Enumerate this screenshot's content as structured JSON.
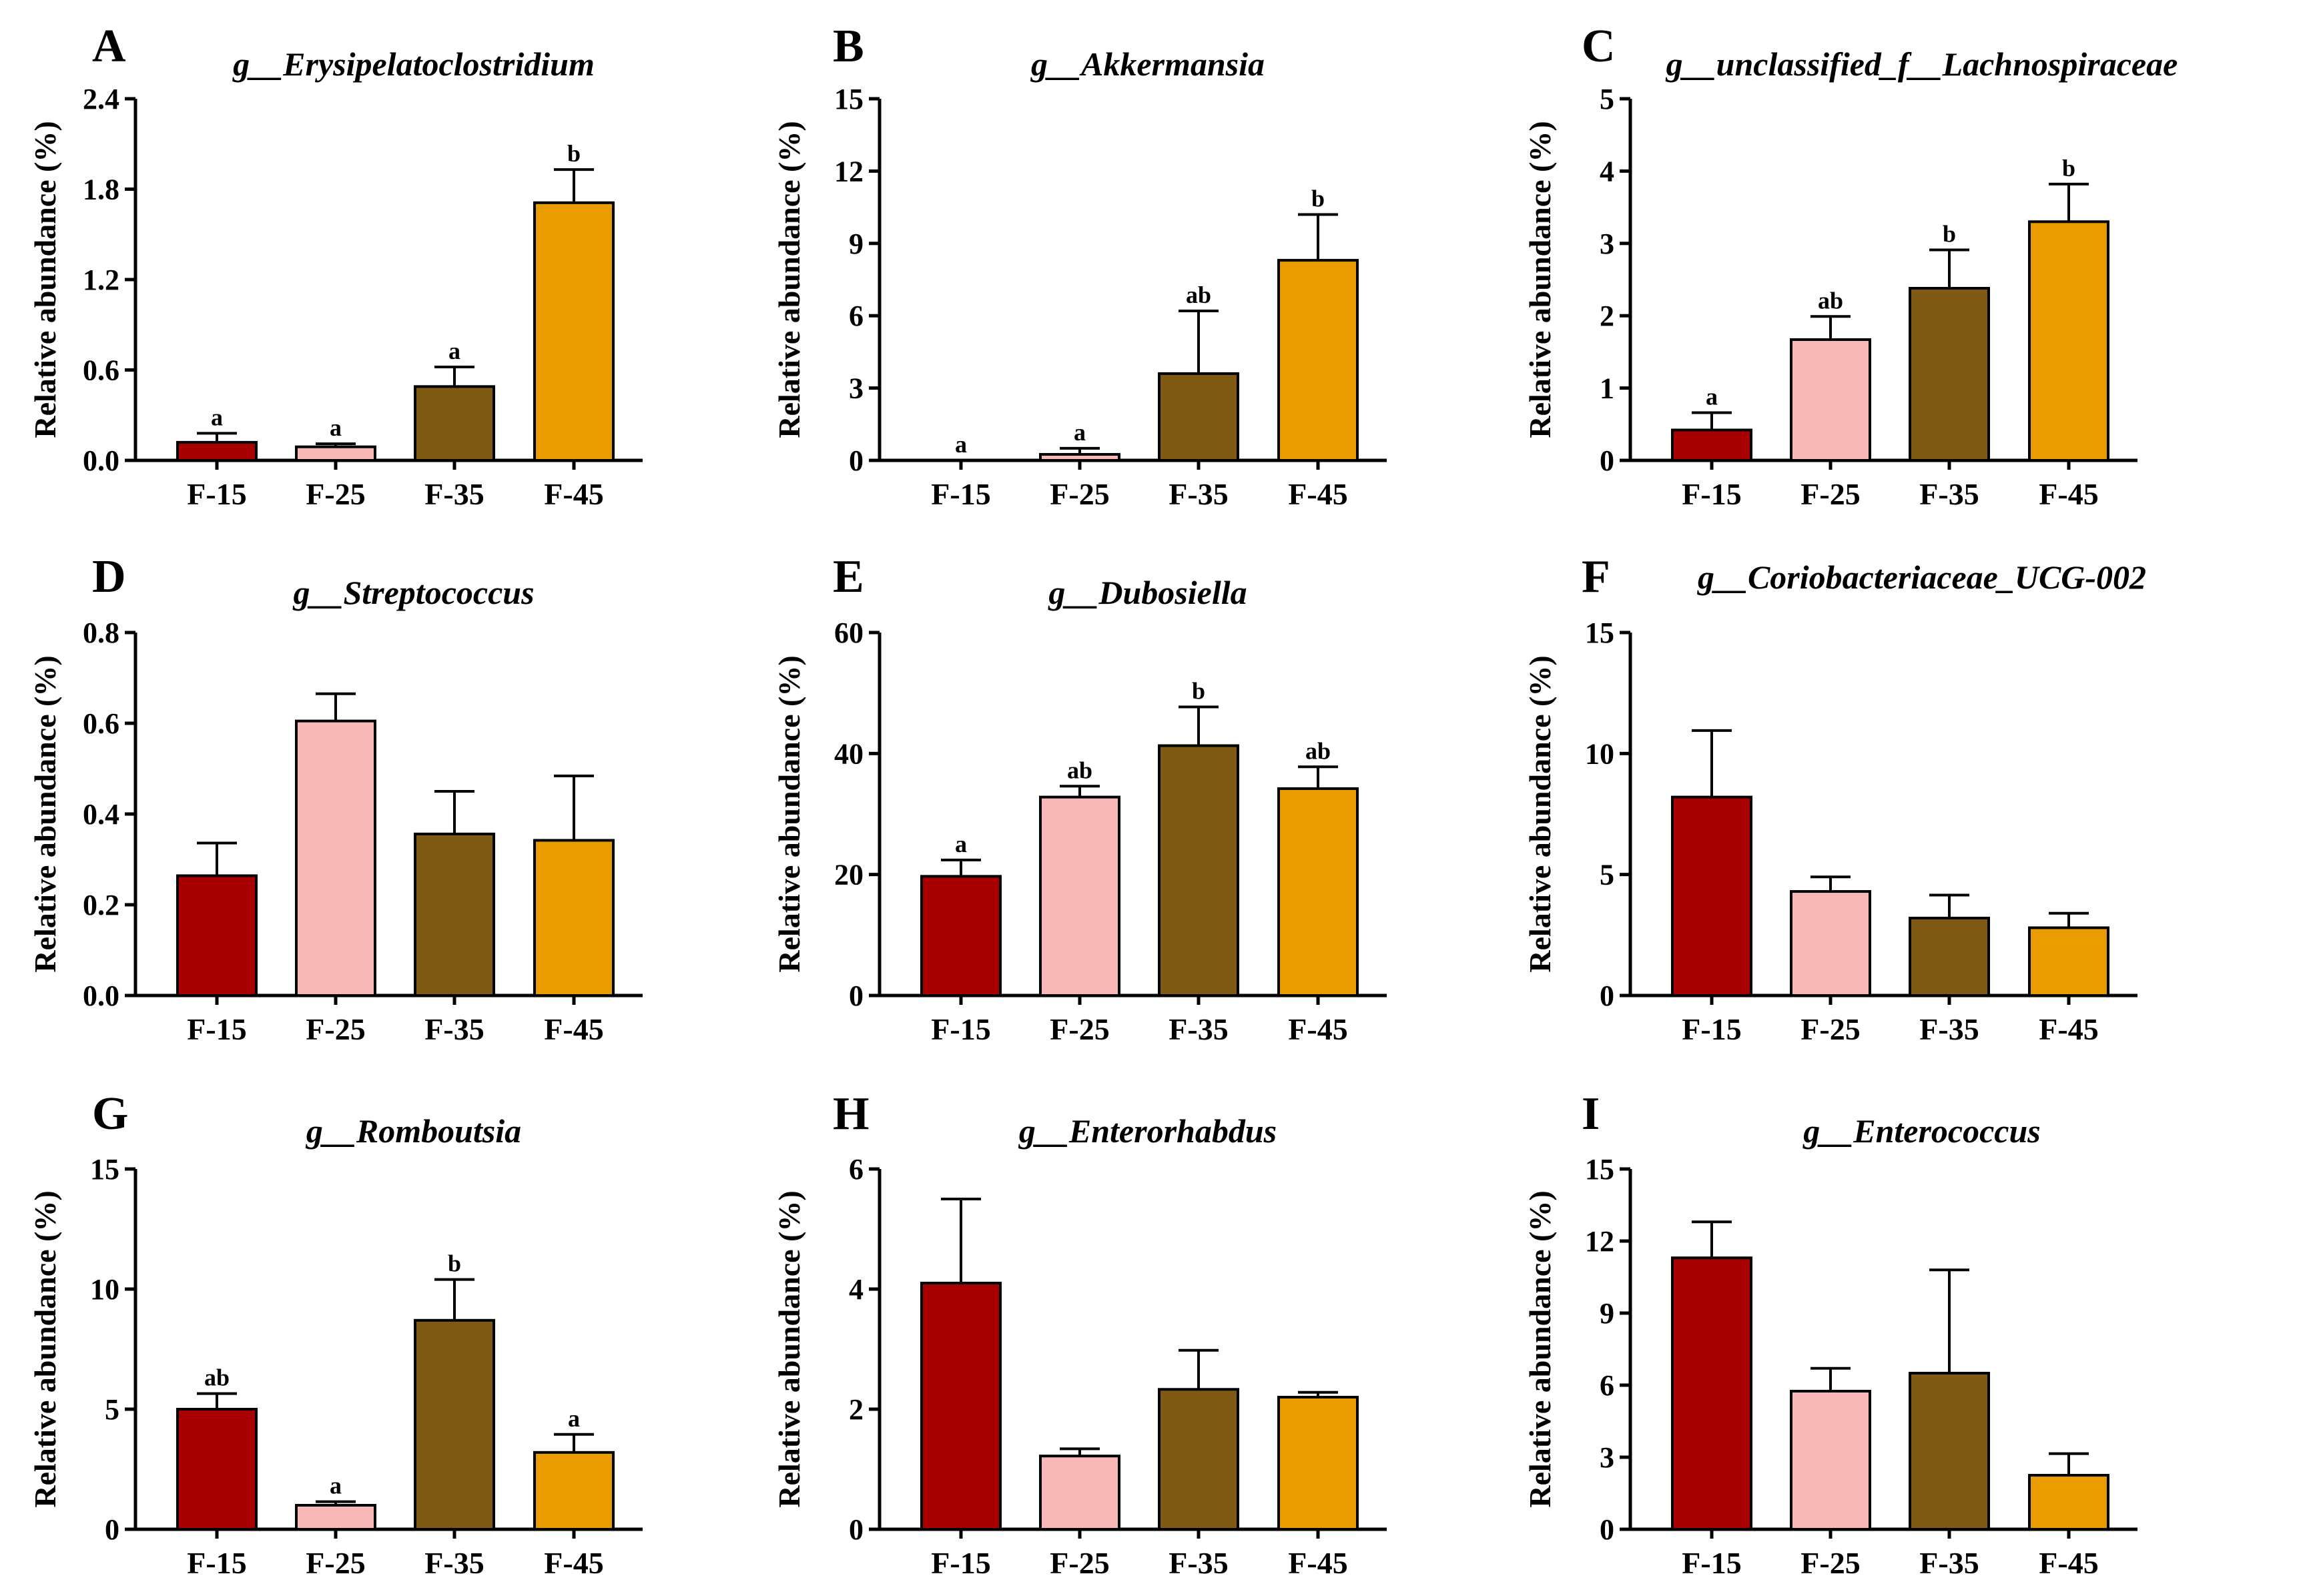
{
  "figure": {
    "colors": [
      "#a80000",
      "#f8b8b8",
      "#7e5a12",
      "#e89c00"
    ],
    "ylabel": "Relative abundance (%)"
  },
  "chart_data": [
    {
      "type": "bar",
      "panel": "A",
      "title": "g__Erysipelatoclostridium",
      "xlabel": "",
      "ylabel": "Relative abundance (%)",
      "categories": [
        "F-15",
        "F-25",
        "F-35",
        "F-45"
      ],
      "values": [
        0.12,
        0.09,
        0.49,
        1.71
      ],
      "errors": [
        0.06,
        0.02,
        0.13,
        0.22
      ],
      "labels": [
        "a",
        "a",
        "a",
        "b"
      ],
      "ylim": [
        0,
        2.4
      ],
      "yticks": [
        0.0,
        0.6,
        1.2,
        1.8,
        2.4
      ],
      "ytick_labels": [
        "0.0",
        "0.6",
        "1.2",
        "1.8",
        "2.4"
      ]
    },
    {
      "type": "bar",
      "panel": "B",
      "title": "g__Akkermansia",
      "xlabel": "",
      "ylabel": "Relative abundance (%)",
      "categories": [
        "F-15",
        "F-25",
        "F-35",
        "F-45"
      ],
      "values": [
        0.0,
        0.25,
        3.6,
        8.3
      ],
      "errors": [
        0.0,
        0.25,
        2.6,
        1.9
      ],
      "labels": [
        "a",
        "a",
        "ab",
        "b"
      ],
      "ylim": [
        0,
        15
      ],
      "yticks": [
        0,
        3,
        6,
        9,
        12,
        15
      ],
      "ytick_labels": [
        "0",
        "3",
        "6",
        "9",
        "12",
        "15"
      ]
    },
    {
      "type": "bar",
      "panel": "C",
      "title": "g__unclassified_f__Lachnospiraceae",
      "xlabel": "",
      "ylabel": "Relative abundance (%)",
      "categories": [
        "F-15",
        "F-25",
        "F-35",
        "F-45"
      ],
      "values": [
        0.42,
        1.67,
        2.38,
        3.3
      ],
      "errors": [
        0.24,
        0.32,
        0.53,
        0.52
      ],
      "labels": [
        "a",
        "ab",
        "b",
        "b"
      ],
      "ylim": [
        0,
        5
      ],
      "yticks": [
        0,
        1,
        2,
        3,
        4,
        5
      ],
      "ytick_labels": [
        "0",
        "1",
        "2",
        "3",
        "4",
        "5"
      ]
    },
    {
      "type": "bar",
      "panel": "D",
      "title": "g__Streptococcus",
      "xlabel": "",
      "ylabel": "Relative abundance (%)",
      "categories": [
        "F-15",
        "F-25",
        "F-35",
        "F-45"
      ],
      "values": [
        0.264,
        0.605,
        0.356,
        0.342
      ],
      "errors": [
        0.072,
        0.06,
        0.094,
        0.142
      ],
      "labels": [
        "",
        "",
        "",
        ""
      ],
      "ylim": [
        0,
        0.8
      ],
      "yticks": [
        0.0,
        0.2,
        0.4,
        0.6,
        0.8
      ],
      "ytick_labels": [
        "0.0",
        "0.2",
        "0.4",
        "0.6",
        "0.8"
      ]
    },
    {
      "type": "bar",
      "panel": "E",
      "title": "g__Dubosiella",
      "xlabel": "",
      "ylabel": "Relative abundance (%)",
      "categories": [
        "F-15",
        "F-25",
        "F-35",
        "F-45"
      ],
      "values": [
        19.7,
        32.8,
        41.3,
        34.2
      ],
      "errors": [
        2.7,
        1.8,
        6.4,
        3.6
      ],
      "labels": [
        "a",
        "ab",
        "b",
        "ab"
      ],
      "ylim": [
        0,
        60
      ],
      "yticks": [
        0,
        20,
        40,
        60
      ],
      "ytick_labels": [
        "0",
        "20",
        "40",
        "60"
      ]
    },
    {
      "type": "bar",
      "panel": "F",
      "title": "g__Coriobacteriaceae_UCG-002",
      "xlabel": "",
      "ylabel": "Relative abundance (%)",
      "categories": [
        "F-15",
        "F-25",
        "F-35",
        "F-45"
      ],
      "values": [
        8.2,
        4.3,
        3.2,
        2.8
      ],
      "errors": [
        2.75,
        0.6,
        0.95,
        0.6
      ],
      "labels": [
        "",
        "",
        "",
        ""
      ],
      "ylim": [
        0,
        15
      ],
      "yticks": [
        0,
        5,
        10,
        15
      ],
      "ytick_labels": [
        "0",
        "5",
        "10",
        "15"
      ]
    },
    {
      "type": "bar",
      "panel": "G",
      "title": "g__Romboutsia",
      "xlabel": "",
      "ylabel": "Relative abundance (%)",
      "categories": [
        "F-15",
        "F-25",
        "F-35",
        "F-45"
      ],
      "values": [
        5.0,
        1.0,
        8.7,
        3.2
      ],
      "errors": [
        0.65,
        0.15,
        1.7,
        0.75
      ],
      "labels": [
        "ab",
        "a",
        "b",
        "a"
      ],
      "ylim": [
        0,
        15
      ],
      "yticks": [
        0,
        5,
        10,
        15
      ],
      "ytick_labels": [
        "0",
        "5",
        "10",
        "15"
      ]
    },
    {
      "type": "bar",
      "panel": "H",
      "title": "g__Enterorhabdus",
      "xlabel": "",
      "ylabel": "Relative abundance (%)",
      "categories": [
        "F-15",
        "F-25",
        "F-35",
        "F-45"
      ],
      "values": [
        4.1,
        1.22,
        2.33,
        2.2
      ],
      "errors": [
        1.4,
        0.12,
        0.65,
        0.08
      ],
      "labels": [
        "",
        "",
        "",
        ""
      ],
      "ylim": [
        0,
        6
      ],
      "yticks": [
        0,
        2,
        4,
        6
      ],
      "ytick_labels": [
        "0",
        "2",
        "4",
        "6"
      ]
    },
    {
      "type": "bar",
      "panel": "I",
      "title": "g__Enterococcus",
      "xlabel": "",
      "ylabel": "Relative abundance (%)",
      "categories": [
        "F-15",
        "F-25",
        "F-35",
        "F-45"
      ],
      "values": [
        11.3,
        5.75,
        6.5,
        2.25
      ],
      "errors": [
        1.5,
        0.95,
        4.3,
        0.9
      ],
      "labels": [
        "",
        "",
        "",
        ""
      ],
      "ylim": [
        0,
        15
      ],
      "yticks": [
        0,
        3,
        6,
        9,
        12,
        15
      ],
      "ytick_labels": [
        "0",
        "3",
        "6",
        "9",
        "12",
        "15"
      ]
    }
  ]
}
